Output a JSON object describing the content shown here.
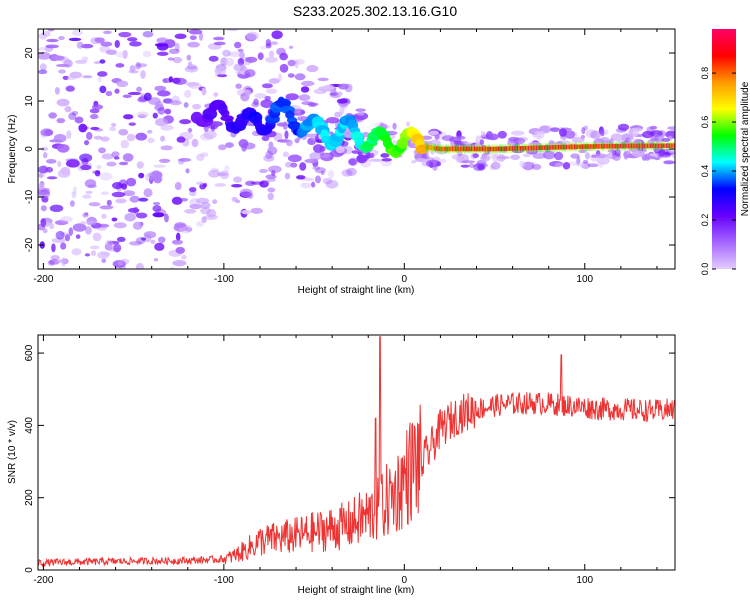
{
  "title": "S233.2025.302.13.16.G10",
  "chart_data": [
    {
      "type": "heatmap",
      "title": "S233.2025.302.13.16.G10",
      "xlabel": "Height of straight line (km)",
      "ylabel": "Frequency (Hz)",
      "xlim": [
        -203,
        150
      ],
      "ylim": [
        -25,
        25
      ],
      "x_ticks": [
        -200,
        -100,
        0,
        100
      ],
      "y_ticks": [
        -20,
        -10,
        0,
        10,
        20
      ],
      "x_tick_labels": [
        "-200",
        "-100",
        "0",
        "100"
      ],
      "y_tick_labels": [
        "-20",
        "-10",
        "0",
        "10",
        "20"
      ],
      "colorbar": {
        "label": "Normalized spectral amplitude",
        "range": [
          0.0,
          0.98
        ],
        "ticks": [
          0.0,
          0.2,
          0.4,
          0.6,
          0.8
        ],
        "tick_labels": [
          "0.0",
          "0.2",
          "0.4",
          "0.6",
          "0.8"
        ],
        "colors": [
          "#e4ccff",
          "#a566ff",
          "#6600ff",
          "#0000ff",
          "#00ffff",
          "#00ff00",
          "#ffff00",
          "#ff9900",
          "#ff0000",
          "#ff0066"
        ]
      },
      "ridge": {
        "x": [
          -120,
          -100,
          -90,
          -80,
          -70,
          -60,
          -50,
          -40,
          -30,
          -20,
          -10,
          0,
          10,
          20,
          50,
          80,
          100,
          120,
          150
        ],
        "freq_hz": [
          8,
          7,
          6,
          5,
          8,
          6,
          4,
          3,
          4,
          2,
          1,
          2,
          0.5,
          0,
          0,
          0.3,
          0.5,
          0.6,
          0.7
        ],
        "amplitude": [
          0.2,
          0.25,
          0.3,
          0.3,
          0.35,
          0.35,
          0.4,
          0.45,
          0.4,
          0.5,
          0.55,
          0.6,
          0.75,
          0.85,
          0.92,
          0.95,
          0.9,
          0.95,
          0.98
        ]
      }
    },
    {
      "type": "line",
      "xlabel": "Height of straight line (km)",
      "ylabel": "SNR (10 * v/v)",
      "xlim": [
        -203,
        150
      ],
      "ylim": [
        0,
        650
      ],
      "x_ticks": [
        -200,
        -100,
        0,
        100
      ],
      "y_ticks": [
        0,
        200,
        400,
        600
      ],
      "x_tick_labels": [
        "-200",
        "-100",
        "0",
        "100"
      ],
      "y_tick_labels": [
        "0",
        "200",
        "400",
        "600"
      ],
      "line_color": "#ee3333",
      "series": [
        {
          "name": "SNR",
          "x": [
            -203,
            -180,
            -160,
            -140,
            -120,
            -100,
            -95,
            -90,
            -85,
            -80,
            -70,
            -60,
            -50,
            -40,
            -30,
            -25,
            -20,
            -15,
            -12,
            -10,
            -5,
            0,
            5,
            10,
            15,
            20,
            30,
            40,
            50,
            60,
            70,
            80,
            90,
            100,
            110,
            120,
            130,
            140,
            150
          ],
          "values": [
            20,
            22,
            24,
            25,
            26,
            30,
            38,
            50,
            65,
            80,
            88,
            95,
            105,
            115,
            125,
            140,
            150,
            165,
            175,
            190,
            210,
            250,
            290,
            300,
            340,
            390,
            430,
            445,
            455,
            460,
            462,
            460,
            455,
            450,
            445,
            445,
            442,
            440,
            445
          ]
        }
      ],
      "peaks": [
        {
          "x": -13.5,
          "y": 645
        },
        {
          "x": -16,
          "y": 420
        },
        {
          "x": 87,
          "y": 595
        }
      ]
    }
  ]
}
